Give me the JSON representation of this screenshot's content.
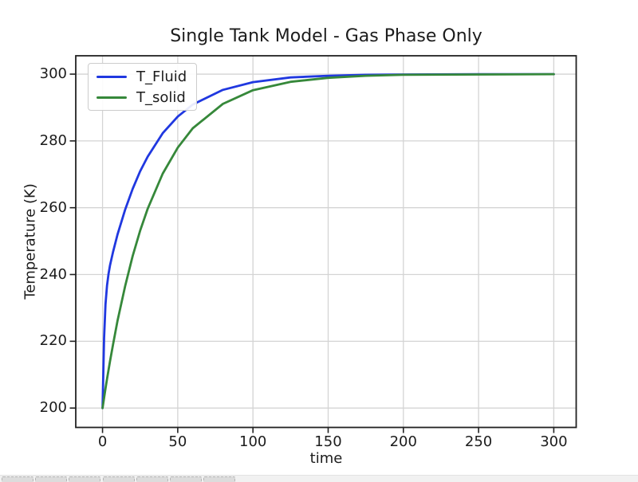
{
  "chart_data": {
    "type": "line",
    "title": "Single Tank Model - Gas Phase Only",
    "xlabel": "time",
    "ylabel": "Temperature (K)",
    "xlim": [
      -17.8,
      314.9
    ],
    "ylim": [
      194.2,
      305.5
    ],
    "xticks": [
      0,
      50,
      100,
      150,
      200,
      250,
      300
    ],
    "yticks": [
      200,
      220,
      240,
      260,
      280,
      300
    ],
    "grid": true,
    "legend_position": "upper left",
    "x": [
      0,
      1,
      2,
      3,
      4,
      5,
      7,
      10,
      15,
      20,
      25,
      30,
      40,
      50,
      60,
      80,
      100,
      125,
      150,
      175,
      200,
      250,
      300
    ],
    "series": [
      {
        "name": "T_Fluid",
        "color": "#2038e0",
        "values": [
          200.0,
          220.9,
          231.1,
          236.7,
          240.2,
          242.8,
          246.8,
          252.0,
          259.4,
          265.6,
          270.9,
          275.3,
          282.3,
          287.3,
          290.9,
          295.3,
          297.6,
          299.0,
          299.5,
          299.8,
          299.9,
          300.0,
          300.0
        ]
      },
      {
        "name": "T_solid",
        "color": "#36883a",
        "values": [
          200.0,
          203.0,
          205.9,
          208.7,
          211.4,
          214.1,
          219.1,
          226.2,
          236.5,
          245.5,
          253.1,
          259.7,
          270.2,
          278.0,
          283.8,
          291.1,
          295.2,
          297.7,
          298.9,
          299.5,
          299.8,
          299.9,
          300.0
        ]
      }
    ]
  },
  "colors": {
    "grid": "#d4d4d4",
    "spine": "#222222",
    "text": "#1c1c1c",
    "toolbar_bg": "#f1f1f1",
    "toolbar_button": "#dcdcdc"
  },
  "toolbar": {
    "button_count": 7
  }
}
